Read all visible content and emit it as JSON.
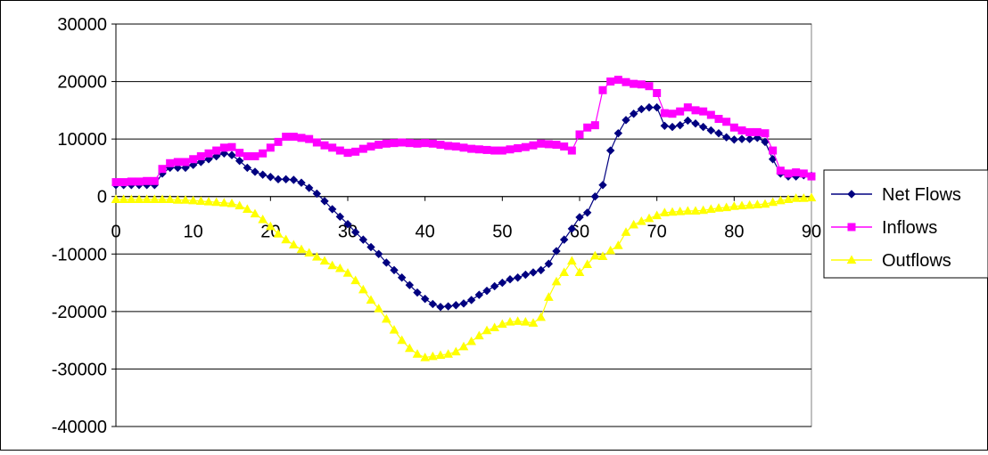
{
  "chart_data": {
    "type": "line",
    "title": "",
    "xlabel": "",
    "ylabel": "",
    "xlim": [
      0,
      90
    ],
    "ylim": [
      -40000,
      30000
    ],
    "x_ticks": [
      "0",
      "10",
      "20",
      "30",
      "40",
      "50",
      "60",
      "70",
      "80",
      "90"
    ],
    "y_ticks": [
      "30000",
      "20000",
      "10000",
      "0",
      "-10000",
      "-20000",
      "-30000",
      "-40000"
    ],
    "grid": "horizontal",
    "legend_position": "right",
    "x": [
      0,
      1,
      2,
      3,
      4,
      5,
      6,
      7,
      8,
      9,
      10,
      11,
      12,
      13,
      14,
      15,
      16,
      17,
      18,
      19,
      20,
      21,
      22,
      23,
      24,
      25,
      26,
      27,
      28,
      29,
      30,
      31,
      32,
      33,
      34,
      35,
      36,
      37,
      38,
      39,
      40,
      41,
      42,
      43,
      44,
      45,
      46,
      47,
      48,
      49,
      50,
      51,
      52,
      53,
      54,
      55,
      56,
      57,
      58,
      59,
      60,
      61,
      62,
      63,
      64,
      65,
      66,
      67,
      68,
      69,
      70,
      71,
      72,
      73,
      74,
      75,
      76,
      77,
      78,
      79,
      80,
      81,
      82,
      83,
      84,
      85,
      86,
      87,
      88,
      89,
      90
    ],
    "series": [
      {
        "name": "Net Flows",
        "color": "#000080",
        "marker": "diamond",
        "values": [
          2000,
          2000,
          2000,
          2000,
          2000,
          2000,
          4000,
          5000,
          5000,
          5000,
          5500,
          6000,
          6500,
          7000,
          7500,
          7200,
          6200,
          5000,
          4300,
          3800,
          3400,
          3000,
          3000,
          2900,
          2400,
          1500,
          500,
          -800,
          -2200,
          -3500,
          -4800,
          -6200,
          -7500,
          -8800,
          -10000,
          -11500,
          -12800,
          -14100,
          -15400,
          -16700,
          -17800,
          -18700,
          -19200,
          -19100,
          -18900,
          -18600,
          -18000,
          -17100,
          -16400,
          -15600,
          -15000,
          -14400,
          -14100,
          -13600,
          -13200,
          -12800,
          -11700,
          -9500,
          -7500,
          -5600,
          -3600,
          -2800,
          0,
          2000,
          8000,
          11000,
          13300,
          14400,
          15200,
          15500,
          15500,
          12300,
          12100,
          12400,
          13200,
          12700,
          12100,
          11500,
          11000,
          10300,
          9900,
          10000,
          10000,
          10200,
          9500,
          6500,
          4000,
          3500,
          3500,
          3700,
          3600
        ]
      },
      {
        "name": "Inflows",
        "color": "#FF00FF",
        "marker": "square",
        "values": [
          2500,
          2500,
          2600,
          2600,
          2700,
          2700,
          4800,
          5800,
          6000,
          6000,
          6500,
          7000,
          7500,
          8000,
          8500,
          8600,
          7600,
          7000,
          7000,
          7500,
          8500,
          9500,
          10400,
          10400,
          10200,
          10000,
          9400,
          8900,
          8500,
          8000,
          7600,
          7800,
          8300,
          8700,
          9000,
          9200,
          9300,
          9400,
          9300,
          9200,
          9300,
          9200,
          9000,
          8800,
          8700,
          8500,
          8300,
          8200,
          8100,
          8000,
          8000,
          8200,
          8400,
          8600,
          8900,
          9200,
          9100,
          9000,
          8700,
          8000,
          10800,
          12000,
          12400,
          18500,
          20000,
          20300,
          19900,
          19600,
          19500,
          19200,
          18000,
          14500,
          14400,
          14800,
          15500,
          15000,
          14800,
          14200,
          13500,
          13000,
          12000,
          11500,
          11200,
          11200,
          11000,
          8000,
          4500,
          4000,
          4200,
          4000,
          3500
        ]
      },
      {
        "name": "Outflows",
        "color": "#FFFF00",
        "marker": "triangle",
        "values": [
          -500,
          -500,
          -500,
          -500,
          -500,
          -500,
          -500,
          -500,
          -600,
          -600,
          -700,
          -800,
          -900,
          -1000,
          -1100,
          -1200,
          -1600,
          -2200,
          -3000,
          -4000,
          -5200,
          -6500,
          -7500,
          -8400,
          -9200,
          -9800,
          -10500,
          -11200,
          -12000,
          -12500,
          -13300,
          -14600,
          -16200,
          -18000,
          -19500,
          -21300,
          -23200,
          -25000,
          -26400,
          -27400,
          -28000,
          -27800,
          -27600,
          -27400,
          -27000,
          -26100,
          -25200,
          -24200,
          -23300,
          -22800,
          -22200,
          -21800,
          -21700,
          -21800,
          -22000,
          -21000,
          -17500,
          -14800,
          -13200,
          -11200,
          -13200,
          -11800,
          -10300,
          -10400,
          -9400,
          -8500,
          -6200,
          -4900,
          -4300,
          -3800,
          -3300,
          -2800,
          -2700,
          -2600,
          -2500,
          -2500,
          -2400,
          -2200,
          -2000,
          -1900,
          -1700,
          -1600,
          -1500,
          -1400,
          -1300,
          -1000,
          -700,
          -500,
          -300,
          -300,
          -200
        ]
      }
    ]
  }
}
